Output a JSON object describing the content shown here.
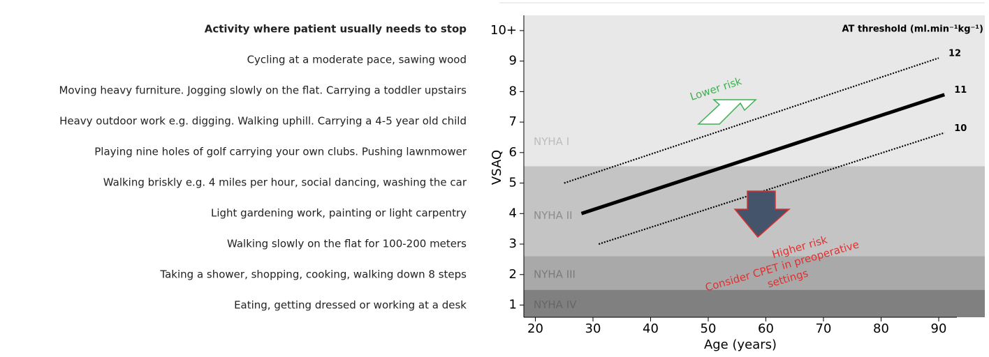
{
  "activity_list": {
    "title": "Activity where patient usually needs to stop",
    "items": [
      "Cycling at a moderate pace, sawing wood",
      "Moving heavy furniture. Jogging slowly on the flat. Carrying a toddler upstairs",
      "Heavy outdoor work e.g. digging. Walking uphill. Carrying a 4-5 year old child",
      "Playing nine holes of golf carrying your own clubs. Pushing  lawnmower",
      "Walking briskly e.g. 4 miles per hour, social dancing, washing the car",
      "Light gardening work, painting or light carpentry",
      "Walking slowly on the flat for 100-200 meters",
      "Taking a shower, shopping, cooking, walking down 8 steps",
      "Eating, getting dressed or working at a desk"
    ]
  },
  "chart_data": {
    "type": "line",
    "x_label": "Age (years)",
    "y_label": "VSAQ",
    "legend_title": "AT threshold (ml.min⁻¹kg⁻¹)",
    "xlim": [
      18,
      98
    ],
    "ylim": [
      0.6,
      10.5
    ],
    "xticks": [
      20,
      30,
      40,
      50,
      60,
      70,
      80,
      90
    ],
    "yticks": [
      1,
      2,
      3,
      4,
      5,
      6,
      7,
      8,
      9,
      {
        "value": 10,
        "label": "10+"
      }
    ],
    "bands": [
      {
        "label": "NYHA I",
        "from": 5.55,
        "to": 10.5,
        "color": "#e8e8e8"
      },
      {
        "label": "NYHA II",
        "from": 2.6,
        "to": 5.55,
        "color": "#c4c4c4"
      },
      {
        "label": "NYHA III",
        "from": 1.5,
        "to": 2.6,
        "color": "#a9a9a9"
      },
      {
        "label": "NYHA IV",
        "from": 0.6,
        "to": 1.5,
        "color": "#808080"
      }
    ],
    "series": [
      {
        "name": "12",
        "color": "#000000",
        "dash": "dotted",
        "x": [
          25,
          90
        ],
        "values": [
          5.0,
          9.1
        ]
      },
      {
        "name": "11",
        "color": "#000000",
        "dash": "solid",
        "x": [
          28,
          91
        ],
        "values": [
          4.0,
          7.9
        ]
      },
      {
        "name": "10",
        "color": "#000000",
        "dash": "dotted",
        "x": [
          31,
          91
        ],
        "values": [
          3.0,
          6.65
        ]
      }
    ],
    "annotations": {
      "lower": "Lower risk",
      "higher": "Higher  risk",
      "consider": [
        "Consider CPET in preoperative",
        "settings"
      ]
    }
  }
}
